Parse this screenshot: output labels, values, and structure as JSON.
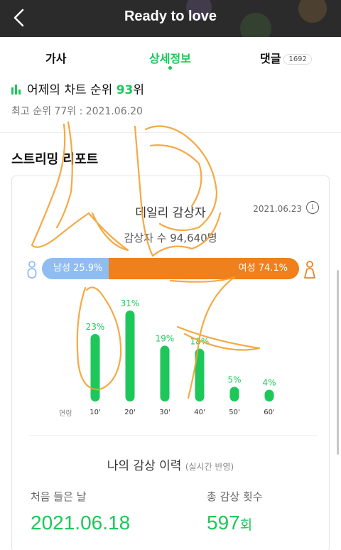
{
  "header": {
    "title": "Ready to love"
  },
  "tabs": [
    {
      "label": "가사"
    },
    {
      "label": "상세정보"
    },
    {
      "label": "댓글",
      "count": "1692"
    }
  ],
  "chart_rank": {
    "prefix": "어제의 차트 순위 ",
    "rank": "93",
    "suffix": "위",
    "peak": "최고 순위 77위 : 2021.06.20"
  },
  "streaming": {
    "section_title": "스트리밍 리포트",
    "card_title": "데일리 감상자",
    "date": "2021.06.23",
    "listeners": "감상자 수 94,640명",
    "male_label": "남성 25.9%",
    "female_label": "여성 74.1%",
    "male_share": 25.9,
    "age_axis_label": "연령"
  },
  "chart_data": {
    "type": "bar",
    "categories": [
      "10'",
      "20'",
      "30'",
      "40'",
      "50'",
      "60'"
    ],
    "values": [
      23,
      31,
      19,
      18,
      5,
      4
    ],
    "labels": [
      "23%",
      "31%",
      "19%",
      "18%",
      "5%",
      "4%"
    ],
    "title": "",
    "xlabel": "연령",
    "ylabel": "",
    "ylim": [
      0,
      31
    ],
    "grid": false
  },
  "history": {
    "title": "나의 감상 이력",
    "subtitle": "(실시간 반영)",
    "first_label": "처음 들은 날",
    "first_value": "2021.06.18",
    "count_label": "총 감상 횟수",
    "count_value": "597",
    "count_unit": "회"
  },
  "colors": {
    "accent": "#1ec75a",
    "male": "#90bdf1",
    "female": "#f0801b",
    "overlay_scribble": "#f5a030"
  },
  "icons": [
    "back-arrow-icon",
    "chart-bars-icon",
    "info-icon",
    "male-person-icon",
    "female-person-icon"
  ]
}
